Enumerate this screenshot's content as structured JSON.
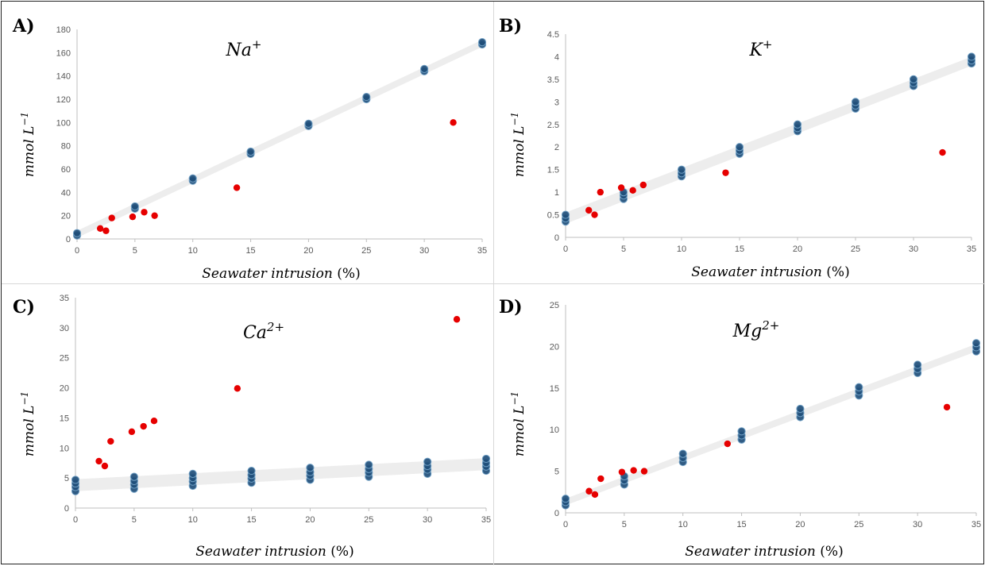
{
  "chart_data": [
    {
      "type": "scatter",
      "panel_label": "A)",
      "title": "Na",
      "title_sup": "+",
      "ylabel": "mmol L",
      "ylabel_sup": "−1",
      "xlabel": "Seawater intrusion",
      "xlabel_unit": " (%)",
      "xlim": [
        0,
        35
      ],
      "ylim": [
        0,
        180
      ],
      "xticks": [
        0,
        5,
        10,
        15,
        20,
        25,
        30,
        35
      ],
      "yticks": [
        0,
        20,
        40,
        60,
        80,
        100,
        120,
        140,
        160,
        180
      ],
      "band": {
        "x": [
          0,
          35
        ],
        "lower": [
          1,
          165
        ],
        "upper": [
          7,
          171
        ]
      },
      "series": [
        {
          "color": "#1f4e79",
          "x": [
            0,
            0,
            5,
            5,
            10,
            10,
            15,
            15,
            20,
            20,
            25,
            25,
            30,
            30,
            35,
            35
          ],
          "y": [
            3,
            5,
            26,
            28,
            50,
            52,
            73,
            75,
            97,
            99,
            120,
            122,
            144,
            146,
            167,
            169
          ]
        },
        {
          "color": "#e60000",
          "x": [
            2,
            2.5,
            3,
            4.8,
            5.8,
            6.7,
            13.8,
            32.5
          ],
          "y": [
            9,
            7,
            18,
            19,
            23,
            20,
            44,
            100
          ]
        }
      ]
    },
    {
      "type": "scatter",
      "panel_label": "B)",
      "title": "K",
      "title_sup": "+",
      "ylabel": "mmol L",
      "ylabel_sup": "−1",
      "xlabel": "Seawater intrusion",
      "xlabel_unit": " (%)",
      "xlim": [
        0,
        35
      ],
      "ylim": [
        0,
        4.5
      ],
      "xticks": [
        0,
        5,
        10,
        15,
        20,
        25,
        30,
        35
      ],
      "yticks": [
        0,
        0.5,
        1,
        1.5,
        2,
        2.5,
        3,
        3.5,
        4,
        4.5
      ],
      "band": {
        "x": [
          0,
          35
        ],
        "lower": [
          0.3,
          3.8
        ],
        "upper": [
          0.55,
          4.0
        ]
      },
      "series": [
        {
          "color": "#1f4e79",
          "x": [
            0,
            0,
            0,
            5,
            5,
            5,
            10,
            10,
            10,
            15,
            15,
            15,
            20,
            20,
            20,
            25,
            25,
            25,
            30,
            30,
            30,
            35,
            35,
            35
          ],
          "y": [
            0.35,
            0.42,
            0.5,
            0.85,
            0.93,
            1.0,
            1.35,
            1.42,
            1.5,
            1.85,
            1.92,
            2.0,
            2.35,
            2.42,
            2.5,
            2.85,
            2.92,
            3.0,
            3.35,
            3.42,
            3.5,
            3.85,
            3.92,
            4.0
          ]
        },
        {
          "color": "#e60000",
          "x": [
            2,
            2.5,
            3,
            4.8,
            5.8,
            6.7,
            13.8,
            32.5
          ],
          "y": [
            0.6,
            0.5,
            1.0,
            1.1,
            1.04,
            1.16,
            1.43,
            1.88
          ]
        }
      ]
    },
    {
      "type": "scatter",
      "panel_label": "C)",
      "title": "Ca",
      "title_sup": "2+",
      "ylabel": "mmol L",
      "ylabel_sup": "−1",
      "xlabel": "Seawater intrusion",
      "xlabel_unit": " (%)",
      "xlim": [
        0,
        35
      ],
      "ylim": [
        0,
        35
      ],
      "xticks": [
        0,
        5,
        10,
        15,
        20,
        25,
        30,
        35
      ],
      "yticks": [
        0,
        5,
        10,
        15,
        20,
        25,
        30,
        35
      ],
      "band": {
        "x": [
          0,
          35
        ],
        "lower": [
          2.8,
          6.3
        ],
        "upper": [
          4.8,
          8.3
        ]
      },
      "series": [
        {
          "color": "#1f4e79",
          "x": [
            0,
            0,
            0,
            0,
            5,
            5,
            5,
            5,
            10,
            10,
            10,
            10,
            15,
            15,
            15,
            15,
            20,
            20,
            20,
            20,
            25,
            25,
            25,
            25,
            30,
            30,
            30,
            30,
            35,
            35,
            35,
            35
          ],
          "y": [
            2.8,
            3.5,
            4.1,
            4.7,
            3.2,
            3.9,
            4.5,
            5.2,
            3.7,
            4.4,
            5.0,
            5.7,
            4.2,
            4.9,
            5.5,
            6.2,
            4.7,
            5.4,
            6.0,
            6.7,
            5.2,
            5.9,
            6.5,
            7.2,
            5.7,
            6.4,
            7.0,
            7.7,
            6.2,
            6.9,
            7.5,
            8.2
          ]
        },
        {
          "color": "#e60000",
          "x": [
            2,
            2.5,
            3,
            4.8,
            5.8,
            6.7,
            13.8,
            32.5
          ],
          "y": [
            7.8,
            7.0,
            11.1,
            12.7,
            13.6,
            14.5,
            19.9,
            31.4
          ]
        }
      ]
    },
    {
      "type": "scatter",
      "panel_label": "D)",
      "title": "Mg",
      "title_sup": "2+",
      "ylabel": "mmol L",
      "ylabel_sup": "−1",
      "xlabel": "Seawater intrusion",
      "xlabel_unit": " (%)",
      "xlim": [
        0,
        35
      ],
      "ylim": [
        0,
        25
      ],
      "xticks": [
        0,
        5,
        10,
        15,
        20,
        25,
        30,
        35
      ],
      "yticks": [
        0,
        5,
        10,
        15,
        20,
        25
      ],
      "band": {
        "x": [
          0,
          35
        ],
        "lower": [
          0.9,
          19.4
        ],
        "upper": [
          1.7,
          20.3
        ]
      },
      "series": [
        {
          "color": "#1f4e79",
          "x": [
            0,
            0,
            0,
            5,
            5,
            5,
            10,
            10,
            10,
            15,
            15,
            15,
            20,
            20,
            20,
            25,
            25,
            25,
            30,
            30,
            30,
            35,
            35,
            35
          ],
          "y": [
            0.9,
            1.3,
            1.7,
            3.4,
            3.9,
            4.4,
            6.1,
            6.6,
            7.1,
            8.8,
            9.3,
            9.8,
            11.5,
            12.0,
            12.5,
            14.1,
            14.6,
            15.1,
            16.8,
            17.3,
            17.8,
            19.4,
            19.9,
            20.4
          ]
        },
        {
          "color": "#e60000",
          "x": [
            2,
            2.5,
            3,
            4.8,
            5.8,
            6.7,
            13.8,
            32.5
          ],
          "y": [
            2.6,
            2.2,
            4.1,
            4.9,
            5.1,
            5.0,
            8.3,
            12.7
          ]
        }
      ]
    }
  ]
}
